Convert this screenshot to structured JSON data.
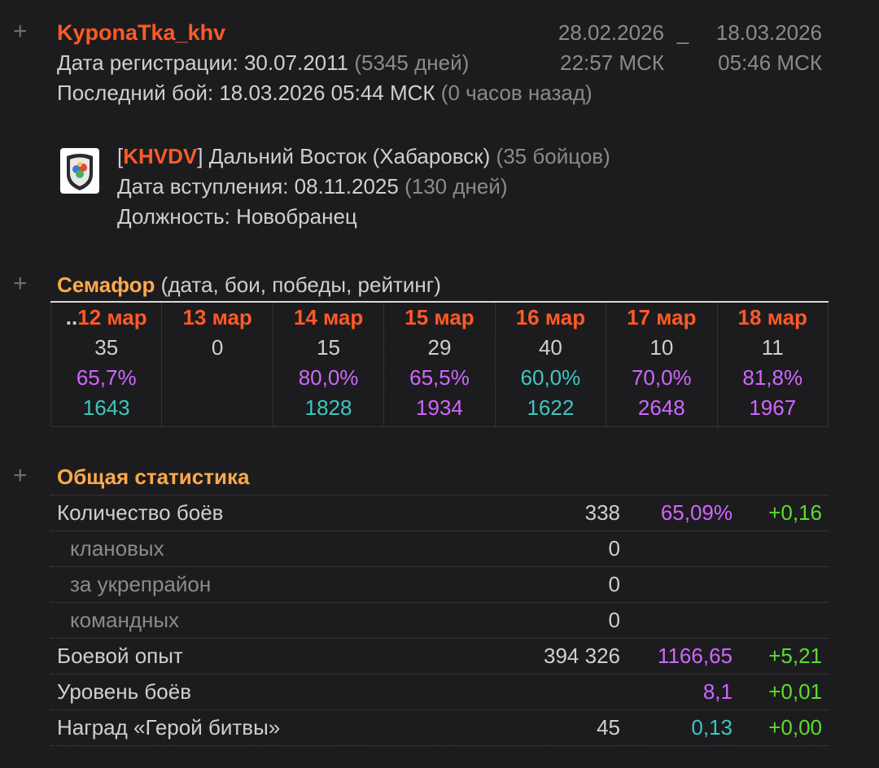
{
  "header": {
    "nickname": "KyponaTka_khv",
    "reg_label": "Дата регистрации: 30.07.2011",
    "reg_days": "(5345 дней)",
    "last_battle_label": "Последний бой: 18.03.2026 05:44 МСК",
    "last_battle_ago": "(0 часов назад)",
    "date_from": "28.02.2026",
    "date_sep": "_",
    "date_to": "18.03.2026",
    "time_from": "22:57 МСК",
    "time_to": "05:46 МСК"
  },
  "clan": {
    "bracket_open": "[",
    "tag": "KHVDV",
    "bracket_close": "]",
    "name": "Дальний Восток (Хабаровск)",
    "members": "(35 бойцов)",
    "join_label": "Дата вступления: 08.11.2025",
    "join_days": "(130 дней)",
    "role_label": "Должность: Новобранец"
  },
  "semafor": {
    "title": "Семафор",
    "subtitle": "(дата, бои, победы, рейтинг)",
    "days": [
      {
        "prefix": "..",
        "date": "12 мар",
        "battles": "35",
        "winrate": "65,7%",
        "winrate_color": "#d066ff",
        "rating": "1643",
        "rating_color": "#3dc6c0"
      },
      {
        "prefix": "",
        "date": "13 мар",
        "battles": "0",
        "winrate": "",
        "winrate_color": "#d066ff",
        "rating": "",
        "rating_color": "#d066ff"
      },
      {
        "prefix": "",
        "date": "14 мар",
        "battles": "15",
        "winrate": "80,0%",
        "winrate_color": "#d066ff",
        "rating": "1828",
        "rating_color": "#3dc6c0"
      },
      {
        "prefix": "",
        "date": "15 мар",
        "battles": "29",
        "winrate": "65,5%",
        "winrate_color": "#d066ff",
        "rating": "1934",
        "rating_color": "#d066ff"
      },
      {
        "prefix": "",
        "date": "16 мар",
        "battles": "40",
        "winrate": "60,0%",
        "winrate_color": "#3dc6c0",
        "rating": "1622",
        "rating_color": "#3dc6c0"
      },
      {
        "prefix": "",
        "date": "17 мар",
        "battles": "10",
        "winrate": "70,0%",
        "winrate_color": "#d066ff",
        "rating": "2648",
        "rating_color": "#d066ff"
      },
      {
        "prefix": "",
        "date": "18 мар",
        "battles": "11",
        "winrate": "81,8%",
        "winrate_color": "#d066ff",
        "rating": "1967",
        "rating_color": "#d066ff"
      }
    ]
  },
  "stats": {
    "title": "Общая статистика",
    "rows": [
      {
        "label": "Количество боёв",
        "sub": false,
        "v1": "338",
        "v2": "65,09%",
        "v2_color": "#d066ff",
        "v3": "+0,16"
      },
      {
        "label": "клановых",
        "sub": true,
        "v1": "0",
        "v2": "",
        "v2_color": "",
        "v3": ""
      },
      {
        "label": "за укрепрайон",
        "sub": true,
        "v1": "0",
        "v2": "",
        "v2_color": "",
        "v3": ""
      },
      {
        "label": "командных",
        "sub": true,
        "v1": "0",
        "v2": "",
        "v2_color": "",
        "v3": ""
      },
      {
        "label": "Боевой опыт",
        "sub": false,
        "v1": "394 326",
        "v2": "1166,65",
        "v2_color": "#d066ff",
        "v3": "+5,21"
      },
      {
        "label": "Уровень боёв",
        "sub": false,
        "v1": "",
        "v2": "8,1",
        "v2_color": "#d066ff",
        "v3": "+0,01"
      },
      {
        "label": "Наград «Герой битвы»",
        "sub": false,
        "v1": "45",
        "v2": "0,13",
        "v2_color": "#3dc6c0",
        "v3": "+0,00"
      }
    ]
  },
  "icons": {
    "expand": "+",
    "clan_logo": "clan-emblem-icon"
  },
  "colors": {
    "accent_orange": "#ff5a26",
    "section_title": "#ffa94d",
    "purple": "#d066ff",
    "teal": "#3dc6c0",
    "green": "#5ddc2f",
    "muted": "#8b8b8b"
  }
}
